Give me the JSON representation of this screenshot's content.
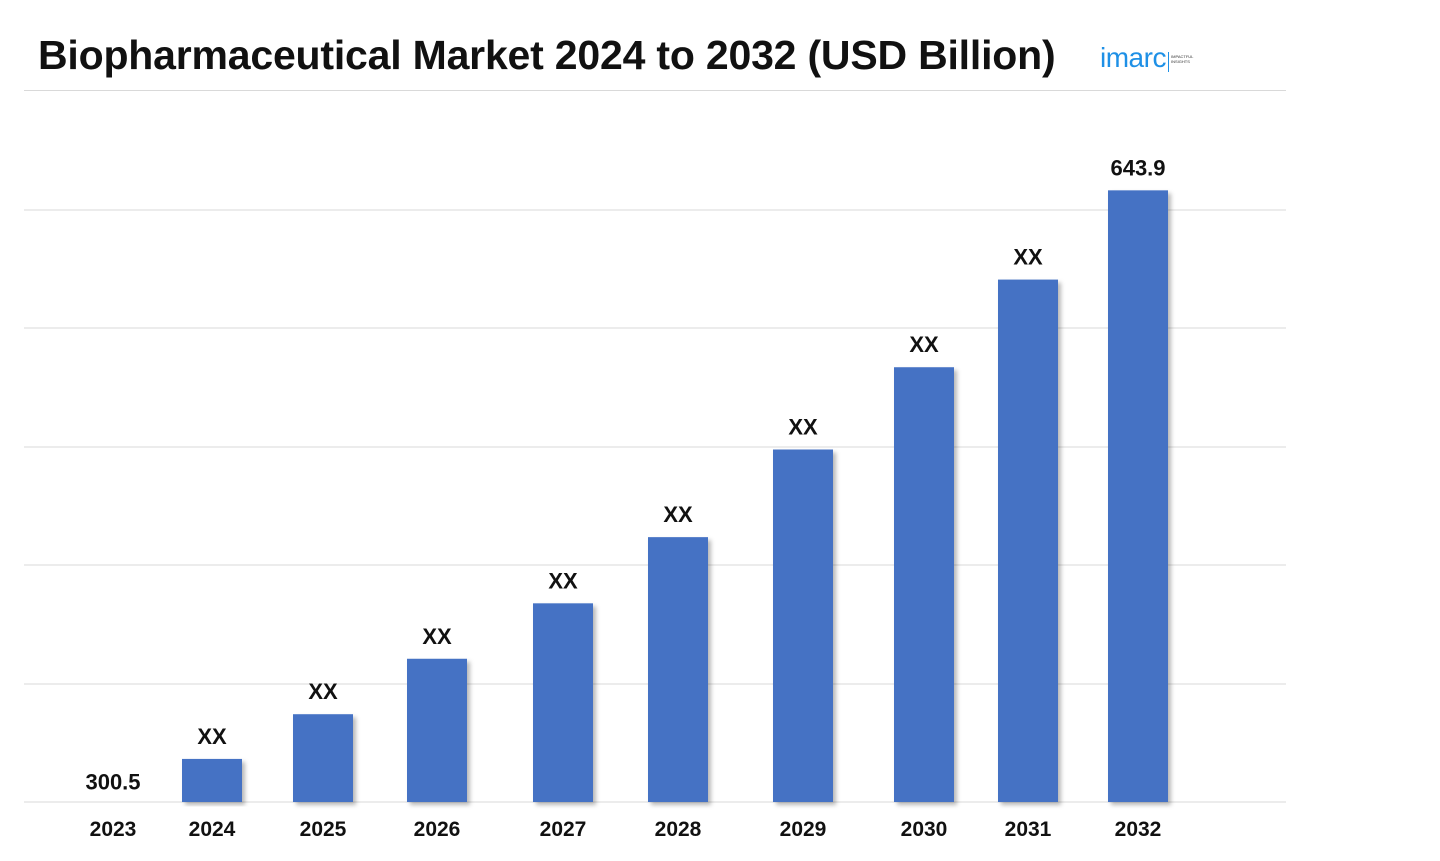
{
  "title": "Biopharmaceutical Market 2024 to 2032 (USD Billion)",
  "logo": {
    "wordmark": "imarc",
    "tagline": "IMPACTFUL INSIGHTS"
  },
  "colors": {
    "bar": "#4472c4",
    "grid": "#d9d9d9",
    "text": "#111111",
    "logo": "#1e90e6"
  },
  "chart_data": {
    "type": "bar",
    "title": "Biopharmaceutical Market 2024 to 2032 (USD Billion)",
    "categories": [
      "2023",
      "2024",
      "2025",
      "2026",
      "2027",
      "2028",
      "2029",
      "2030",
      "2031",
      "2032"
    ],
    "values": [
      300.5,
      326,
      351,
      382,
      413,
      450,
      499,
      545,
      594,
      643.9
    ],
    "data_labels": [
      "300.5",
      "XX",
      "XX",
      "XX",
      "XX",
      "XX",
      "XX",
      "XX",
      "XX",
      "643.9"
    ],
    "xlabel": "",
    "ylabel": "",
    "ylim": [
      0,
      700
    ],
    "grid": true,
    "legend": "none"
  }
}
